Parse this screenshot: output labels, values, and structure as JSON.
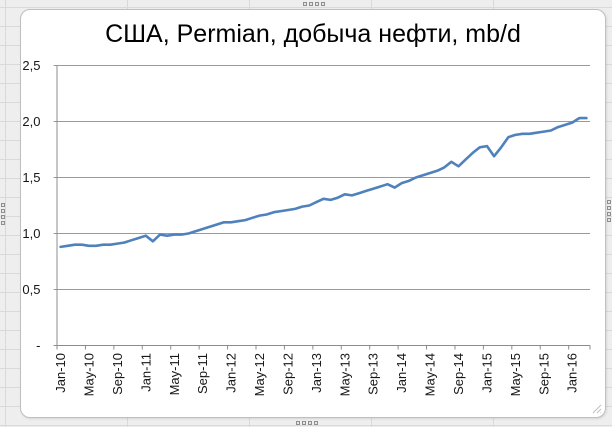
{
  "chart": {
    "frame_fill": "#ffffff",
    "frame_border_color": "#bfbfbf",
    "line_color": "#4f81bd",
    "gridline_color": "#9a9a9a",
    "axis_color": "#8c8c8c",
    "text_color": "#161616",
    "worksheet_background": "#eeeeee"
  },
  "chart_data": {
    "type": "line",
    "title": "США, Permian, добыча нефти, mb/d",
    "xlabel": "",
    "ylabel": "",
    "ylim": [
      0,
      2.5
    ],
    "y_step": 0.5,
    "grid": "horizontal",
    "legend": "none",
    "y_tick_labels": [
      "2,5",
      "2,0",
      "1,5",
      "1,0",
      "0,5",
      "-"
    ],
    "x_tick_labels": [
      "Jan-10",
      "May-10",
      "Sep-10",
      "Jan-11",
      "May-11",
      "Sep-11",
      "Jan-12",
      "May-12",
      "Sep-12",
      "Jan-13",
      "May-13",
      "Sep-13",
      "Jan-14",
      "May-14",
      "Sep-14",
      "Jan-15",
      "May-15",
      "Sep-15",
      "Jan-16"
    ],
    "x_tick_every_n_months": 4,
    "x": [
      "Jan-10",
      "Feb-10",
      "Mar-10",
      "Apr-10",
      "May-10",
      "Jun-10",
      "Jul-10",
      "Aug-10",
      "Sep-10",
      "Oct-10",
      "Nov-10",
      "Dec-10",
      "Jan-11",
      "Feb-11",
      "Mar-11",
      "Apr-11",
      "May-11",
      "Jun-11",
      "Jul-11",
      "Aug-11",
      "Sep-11",
      "Oct-11",
      "Nov-11",
      "Dec-11",
      "Jan-12",
      "Feb-12",
      "Mar-12",
      "Apr-12",
      "May-12",
      "Jun-12",
      "Jul-12",
      "Aug-12",
      "Sep-12",
      "Oct-12",
      "Nov-12",
      "Dec-12",
      "Jan-13",
      "Feb-13",
      "Mar-13",
      "Apr-13",
      "May-13",
      "Jun-13",
      "Jul-13",
      "Aug-13",
      "Sep-13",
      "Oct-13",
      "Nov-13",
      "Dec-13",
      "Jan-14",
      "Feb-14",
      "Mar-14",
      "Apr-14",
      "May-14",
      "Jun-14",
      "Jul-14",
      "Aug-14",
      "Sep-14",
      "Oct-14",
      "Nov-14",
      "Dec-14",
      "Jan-15",
      "Feb-15",
      "Mar-15",
      "Apr-15",
      "May-15",
      "Jun-15",
      "Jul-15",
      "Aug-15",
      "Sep-15",
      "Oct-15",
      "Nov-15",
      "Dec-15",
      "Jan-16",
      "Feb-16",
      "Mar-16"
    ],
    "series": [
      {
        "name": "Permian oil production, mb/d",
        "values": [
          0.88,
          0.89,
          0.9,
          0.9,
          0.89,
          0.89,
          0.9,
          0.9,
          0.91,
          0.92,
          0.94,
          0.96,
          0.98,
          0.93,
          0.99,
          0.98,
          0.99,
          0.99,
          1.0,
          1.02,
          1.04,
          1.06,
          1.08,
          1.1,
          1.1,
          1.11,
          1.12,
          1.14,
          1.16,
          1.17,
          1.19,
          1.2,
          1.21,
          1.22,
          1.24,
          1.25,
          1.28,
          1.31,
          1.3,
          1.32,
          1.35,
          1.34,
          1.36,
          1.38,
          1.4,
          1.42,
          1.44,
          1.41,
          1.45,
          1.47,
          1.5,
          1.52,
          1.54,
          1.56,
          1.59,
          1.64,
          1.6,
          1.66,
          1.72,
          1.77,
          1.78,
          1.69,
          1.77,
          1.86,
          1.88,
          1.89,
          1.89,
          1.9,
          1.91,
          1.92,
          1.95,
          1.97,
          1.99,
          2.03,
          2.03
        ]
      }
    ]
  }
}
